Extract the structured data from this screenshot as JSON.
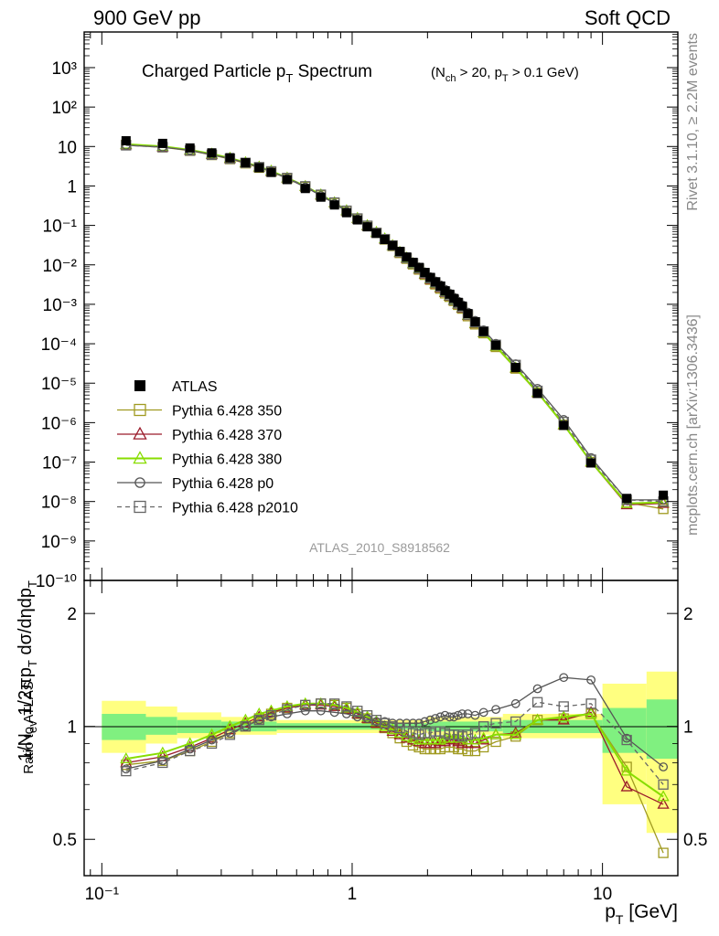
{
  "header": {
    "left": "900 GeV pp",
    "right": "Soft QCD"
  },
  "side": {
    "top": "Rivet 3.1.10, ≥ 2.2M events",
    "bottom": "mcplots.cern.ch [arXiv:1306.3436]"
  },
  "chart_data": [
    {
      "type": "line",
      "panel": "main",
      "title": "Charged Particle p_T Spectrum",
      "subtitle": "(N_ch > 20, p_T > 0.1 GeV)",
      "ylabel": "1/N_ev 1/2πp_T dσ/dηdp_T",
      "watermark": "ATLAS_2010_S8918562",
      "xscale": "log",
      "yscale": "log",
      "xlim": [
        0.085,
        20
      ],
      "ylim": [
        1e-10,
        8000
      ],
      "ytick_labels": [
        "10⁻¹⁰",
        "10⁻⁹",
        "10⁻⁸",
        "10⁻⁷",
        "10⁻⁶",
        "10⁻⁵",
        "10⁻⁴",
        "10⁻³",
        "10⁻²",
        "10⁻¹",
        "1",
        "10",
        "10²",
        "10³"
      ],
      "legend_position": "middle-left",
      "x": [
        0.125,
        0.175,
        0.225,
        0.275,
        0.325,
        0.375,
        0.425,
        0.475,
        0.55,
        0.65,
        0.75,
        0.85,
        0.95,
        1.05,
        1.15,
        1.25,
        1.35,
        1.45,
        1.55,
        1.65,
        1.75,
        1.85,
        1.95,
        2.05,
        2.15,
        2.25,
        2.35,
        2.45,
        2.55,
        2.65,
        2.75,
        2.9,
        3.1,
        3.35,
        3.75,
        4.5,
        5.5,
        7.0,
        9.0,
        12.5,
        17.5
      ],
      "series": [
        {
          "name": "ATLAS",
          "color": "#000000",
          "marker": "filled-square",
          "values": [
            14,
            12,
            9.2,
            6.9,
            5.2,
            3.9,
            2.9,
            2.2,
            1.45,
            0.86,
            0.52,
            0.33,
            0.21,
            0.138,
            0.092,
            0.063,
            0.044,
            0.031,
            0.022,
            0.0158,
            0.0116,
            0.0086,
            0.0064,
            0.0048,
            0.0037,
            0.0029,
            0.0022,
            0.0018,
            0.0014,
            0.00112,
            0.0009,
            0.00058,
            0.00036,
            0.000205,
            9.2e-05,
            2.5e-05,
            5.5e-06,
            8.5e-07,
            9.5e-08,
            1.2e-08,
            1.45e-08
          ]
        },
        {
          "name": "Pythia 6.428 350",
          "color": "#a09a20",
          "marker": "open-square",
          "values": [
            11,
            9.6,
            7.8,
            6.1,
            4.8,
            3.75,
            2.9,
            2.3,
            1.55,
            0.95,
            0.58,
            0.37,
            0.23,
            0.148,
            0.097,
            0.065,
            0.044,
            0.03,
            0.02,
            0.0143,
            0.0103,
            0.0076,
            0.0056,
            0.0042,
            0.0032,
            0.0025,
            0.0019,
            0.00155,
            0.00122,
            0.00097,
            0.00078,
            0.0005,
            0.00031,
            0.000185,
            8.3e-05,
            2.35e-05,
            5.7e-06,
            8.8e-07,
            1e-07,
            9.5e-09,
            6.5e-09
          ]
        },
        {
          "name": "Pythia 6.428 370",
          "color": "#9a1a2a",
          "marker": "open-triangle",
          "values": [
            11.1,
            9.8,
            8.0,
            6.3,
            4.95,
            3.85,
            3.0,
            2.35,
            1.58,
            0.97,
            0.59,
            0.375,
            0.235,
            0.15,
            0.098,
            0.066,
            0.045,
            0.031,
            0.0205,
            0.0146,
            0.0106,
            0.0078,
            0.0058,
            0.0043,
            0.0033,
            0.0026,
            0.002,
            0.0016,
            0.00126,
            0.001,
            0.0008,
            0.00052,
            0.00032,
            0.00019,
            8.6e-05,
            2.4e-05,
            5.8e-06,
            8.8e-07,
            1e-07,
            8.3e-09,
            9e-09
          ]
        },
        {
          "name": "Pythia 6.428 380",
          "color": "#88dd00",
          "marker": "open-triangle",
          "values": [
            11.4,
            10.1,
            8.2,
            6.5,
            5.1,
            3.95,
            3.05,
            2.4,
            1.6,
            0.98,
            0.6,
            0.38,
            0.238,
            0.152,
            0.1,
            0.067,
            0.046,
            0.031,
            0.021,
            0.015,
            0.0108,
            0.008,
            0.006,
            0.0044,
            0.0034,
            0.0027,
            0.00205,
            0.00163,
            0.00128,
            0.00102,
            0.00082,
            0.00053,
            0.00033,
            0.000192,
            8.7e-05,
            2.45e-05,
            5.9e-06,
            9e-07,
            1.02e-07,
            9e-09,
            9.5e-09
          ]
        },
        {
          "name": "Pythia 6.428 p0",
          "color": "#555555",
          "marker": "open-circle",
          "values": [
            10.8,
            9.7,
            8.0,
            6.2,
            4.95,
            3.85,
            3.0,
            2.3,
            1.55,
            0.94,
            0.57,
            0.36,
            0.225,
            0.145,
            0.095,
            0.064,
            0.045,
            0.031,
            0.0222,
            0.016,
            0.0118,
            0.0088,
            0.0066,
            0.005,
            0.0039,
            0.0031,
            0.0024,
            0.0019,
            0.0015,
            0.0012,
            0.00097,
            0.00063,
            0.00039,
            0.000225,
            0.000102,
            3.1e-05,
            7.4e-06,
            1.2e-06,
            1.3e-07,
            1.1e-08,
            1.1e-08
          ]
        },
        {
          "name": "Pythia 6.428 p2010",
          "color": "#666666",
          "marker": "open-square",
          "dashed": true,
          "values": [
            10.7,
            9.6,
            7.9,
            6.15,
            4.9,
            3.85,
            3.0,
            2.35,
            1.6,
            0.98,
            0.6,
            0.38,
            0.236,
            0.15,
            0.098,
            0.065,
            0.045,
            0.031,
            0.0212,
            0.015,
            0.011,
            0.0082,
            0.0062,
            0.0046,
            0.0036,
            0.0028,
            0.0021,
            0.0017,
            0.0013,
            0.00106,
            0.00085,
            0.00055,
            0.00035,
            0.000205,
            9.4e-05,
            2.9e-05,
            6.4e-06,
            1.04e-06,
            1.15e-07,
            1.1e-08,
            1e-08
          ]
        }
      ]
    },
    {
      "type": "line",
      "panel": "ratio",
      "ylabel": "Ratio to ATLAS",
      "xlabel": "p_T  [GeV]",
      "xscale": "log",
      "yscale": "log",
      "xlim": [
        0.085,
        20
      ],
      "ylim": [
        0.4,
        2.45
      ],
      "xtick_labels": [
        "10⁻¹",
        "1",
        "10"
      ],
      "ytick_labels": [
        "0.5",
        "1",
        "2"
      ],
      "band_edges": [
        0.1,
        0.15,
        0.2,
        0.3,
        0.5,
        1,
        2,
        4,
        10,
        15,
        20
      ],
      "band_green": [
        [
          0.92,
          1.08
        ],
        [
          0.95,
          1.06
        ],
        [
          0.96,
          1.04
        ],
        [
          0.97,
          1.03
        ],
        [
          0.98,
          1.02
        ],
        [
          0.98,
          1.02
        ],
        [
          0.97,
          1.03
        ],
        [
          0.96,
          1.04
        ],
        [
          0.85,
          1.12
        ],
        [
          0.82,
          1.18
        ]
      ],
      "band_yellow": [
        [
          0.85,
          1.17
        ],
        [
          0.9,
          1.13
        ],
        [
          0.93,
          1.09
        ],
        [
          0.95,
          1.06
        ],
        [
          0.96,
          1.04
        ],
        [
          0.96,
          1.04
        ],
        [
          0.95,
          1.06
        ],
        [
          0.93,
          1.08
        ],
        [
          0.62,
          1.3
        ],
        [
          0.52,
          1.4
        ]
      ],
      "x": [
        0.125,
        0.175,
        0.225,
        0.275,
        0.325,
        0.375,
        0.425,
        0.475,
        0.55,
        0.65,
        0.75,
        0.85,
        0.95,
        1.05,
        1.15,
        1.25,
        1.35,
        1.45,
        1.55,
        1.65,
        1.75,
        1.85,
        1.95,
        2.05,
        2.15,
        2.25,
        2.35,
        2.45,
        2.55,
        2.65,
        2.75,
        2.9,
        3.1,
        3.35,
        3.75,
        4.5,
        5.5,
        7.0,
        9.0,
        12.5,
        17.5
      ],
      "series": [
        {
          "name": "Pythia 6.428 350",
          "color": "#a09a20",
          "marker": "open-square",
          "values": [
            0.79,
            0.81,
            0.86,
            0.91,
            0.96,
            1.0,
            1.05,
            1.08,
            1.12,
            1.14,
            1.15,
            1.14,
            1.12,
            1.08,
            1.05,
            1.02,
            0.99,
            0.96,
            0.93,
            0.91,
            0.89,
            0.88,
            0.87,
            0.87,
            0.87,
            0.87,
            0.88,
            0.88,
            0.88,
            0.87,
            0.87,
            0.86,
            0.86,
            0.88,
            0.91,
            0.94,
            1.04,
            1.05,
            1.08,
            0.78,
            0.46
          ]
        },
        {
          "name": "Pythia 6.428 370",
          "color": "#9a1a2a",
          "marker": "open-triangle",
          "values": [
            0.8,
            0.83,
            0.88,
            0.93,
            0.98,
            1.02,
            1.06,
            1.09,
            1.12,
            1.14,
            1.14,
            1.13,
            1.11,
            1.08,
            1.05,
            1.02,
            0.99,
            0.97,
            0.95,
            0.93,
            0.92,
            0.91,
            0.9,
            0.9,
            0.9,
            0.91,
            0.91,
            0.92,
            0.92,
            0.91,
            0.9,
            0.9,
            0.9,
            0.92,
            0.95,
            0.96,
            1.04,
            1.04,
            1.09,
            0.69,
            0.62
          ]
        },
        {
          "name": "Pythia 6.428 380",
          "color": "#88dd00",
          "marker": "open-triangle",
          "values": [
            0.82,
            0.85,
            0.9,
            0.95,
            1.0,
            1.04,
            1.08,
            1.1,
            1.13,
            1.15,
            1.15,
            1.14,
            1.12,
            1.09,
            1.06,
            1.03,
            1.0,
            0.98,
            0.96,
            0.94,
            0.93,
            0.92,
            0.92,
            0.92,
            0.92,
            0.92,
            0.93,
            0.93,
            0.93,
            0.93,
            0.93,
            0.92,
            0.92,
            0.93,
            0.95,
            0.95,
            1.04,
            1.06,
            1.08,
            0.76,
            0.65
          ]
        },
        {
          "name": "Pythia 6.428 p0",
          "color": "#555555",
          "marker": "open-circle",
          "values": [
            0.77,
            0.81,
            0.87,
            0.92,
            0.96,
            1.0,
            1.04,
            1.06,
            1.08,
            1.1,
            1.1,
            1.09,
            1.08,
            1.06,
            1.05,
            1.03,
            1.03,
            1.02,
            1.02,
            1.02,
            1.02,
            1.02,
            1.03,
            1.04,
            1.05,
            1.06,
            1.07,
            1.06,
            1.06,
            1.07,
            1.08,
            1.08,
            1.07,
            1.09,
            1.11,
            1.15,
            1.26,
            1.35,
            1.33,
            0.93,
            0.78
          ]
        },
        {
          "name": "Pythia 6.428 p2010",
          "color": "#666666",
          "marker": "open-square",
          "dashed": true,
          "values": [
            0.76,
            0.8,
            0.86,
            0.9,
            0.95,
            1.0,
            1.04,
            1.07,
            1.11,
            1.14,
            1.15,
            1.15,
            1.13,
            1.1,
            1.07,
            1.04,
            1.02,
            1.0,
            0.99,
            0.97,
            0.96,
            0.95,
            0.96,
            0.96,
            0.97,
            0.97,
            0.96,
            0.95,
            0.95,
            0.95,
            0.94,
            0.95,
            0.96,
            1.0,
            1.02,
            1.03,
            1.16,
            1.13,
            1.15,
            0.92,
            0.7
          ]
        }
      ]
    }
  ]
}
